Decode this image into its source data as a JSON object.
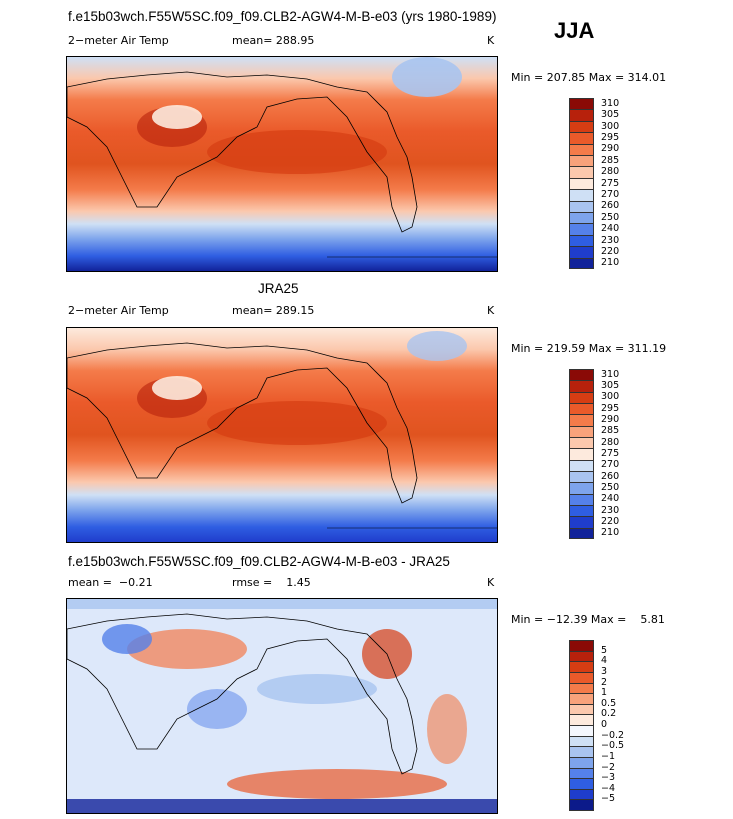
{
  "season": "JJA",
  "panels": [
    {
      "id": "model",
      "title": "f.e15b03wch.F55W5SC.f09_f09.CLB2-AGW4-M-B-e03 (yrs 1980-1989)",
      "left_label": "2−meter Air Temp",
      "center_label": "mean= 288.95",
      "unit": "K",
      "range_text": "Min = 207.85 Max = 314.01",
      "colorbar_labels": [
        "310",
        "305",
        "300",
        "295",
        "290",
        "285",
        "280",
        "275",
        "270",
        "260",
        "250",
        "240",
        "230",
        "220",
        "210"
      ],
      "colorbar_colors": [
        "#8a0a06",
        "#b7210c",
        "#d63d13",
        "#ea5a2a",
        "#f47b4a",
        "#f8a27b",
        "#fbc8ad",
        "#fdeadd",
        "#cfe0f5",
        "#a9c4f0",
        "#7ea4ec",
        "#5581ea",
        "#2f5ee2",
        "#1f3dcc",
        "#11229a"
      ]
    },
    {
      "id": "obs",
      "title": "JRA25",
      "left_label": "2−meter Air Temp",
      "center_label": "mean= 289.15",
      "unit": "K",
      "range_text": "Min = 219.59 Max = 311.19",
      "colorbar_labels": [
        "310",
        "305",
        "300",
        "295",
        "290",
        "285",
        "280",
        "275",
        "270",
        "260",
        "250",
        "240",
        "230",
        "220",
        "210"
      ],
      "colorbar_colors": [
        "#8a0a06",
        "#b7210c",
        "#d63d13",
        "#ea5a2a",
        "#f47b4a",
        "#f8a27b",
        "#fbc8ad",
        "#fdeadd",
        "#cfe0f5",
        "#a9c4f0",
        "#7ea4ec",
        "#5581ea",
        "#2f5ee2",
        "#1f3dcc",
        "#11229a"
      ]
    },
    {
      "id": "diff",
      "title": "f.e15b03wch.F55W5SC.f09_f09.CLB2-AGW4-M-B-e03 - JRA25",
      "left_label": "mean =  −0.21",
      "center_label": "rmse =    1.45",
      "unit": "K",
      "range_text": "Min = −12.39 Max =    5.81",
      "colorbar_labels": [
        "5",
        "4",
        "3",
        "2",
        "1",
        "0.5",
        "0.2",
        "0",
        "−0.2",
        "−0.5",
        "−1",
        "−2",
        "−3",
        "−4",
        "−5"
      ],
      "colorbar_colors": [
        "#8a0a06",
        "#b7210c",
        "#d63d13",
        "#ea5a2a",
        "#f47b4a",
        "#f8a27b",
        "#fbc8ad",
        "#fdeadd",
        "#f4f7fd",
        "#cfe0f5",
        "#a9c4f0",
        "#7ea4ec",
        "#5581ea",
        "#2f5ee2",
        "#1f3dcc",
        "#0c1a8a"
      ]
    }
  ]
}
